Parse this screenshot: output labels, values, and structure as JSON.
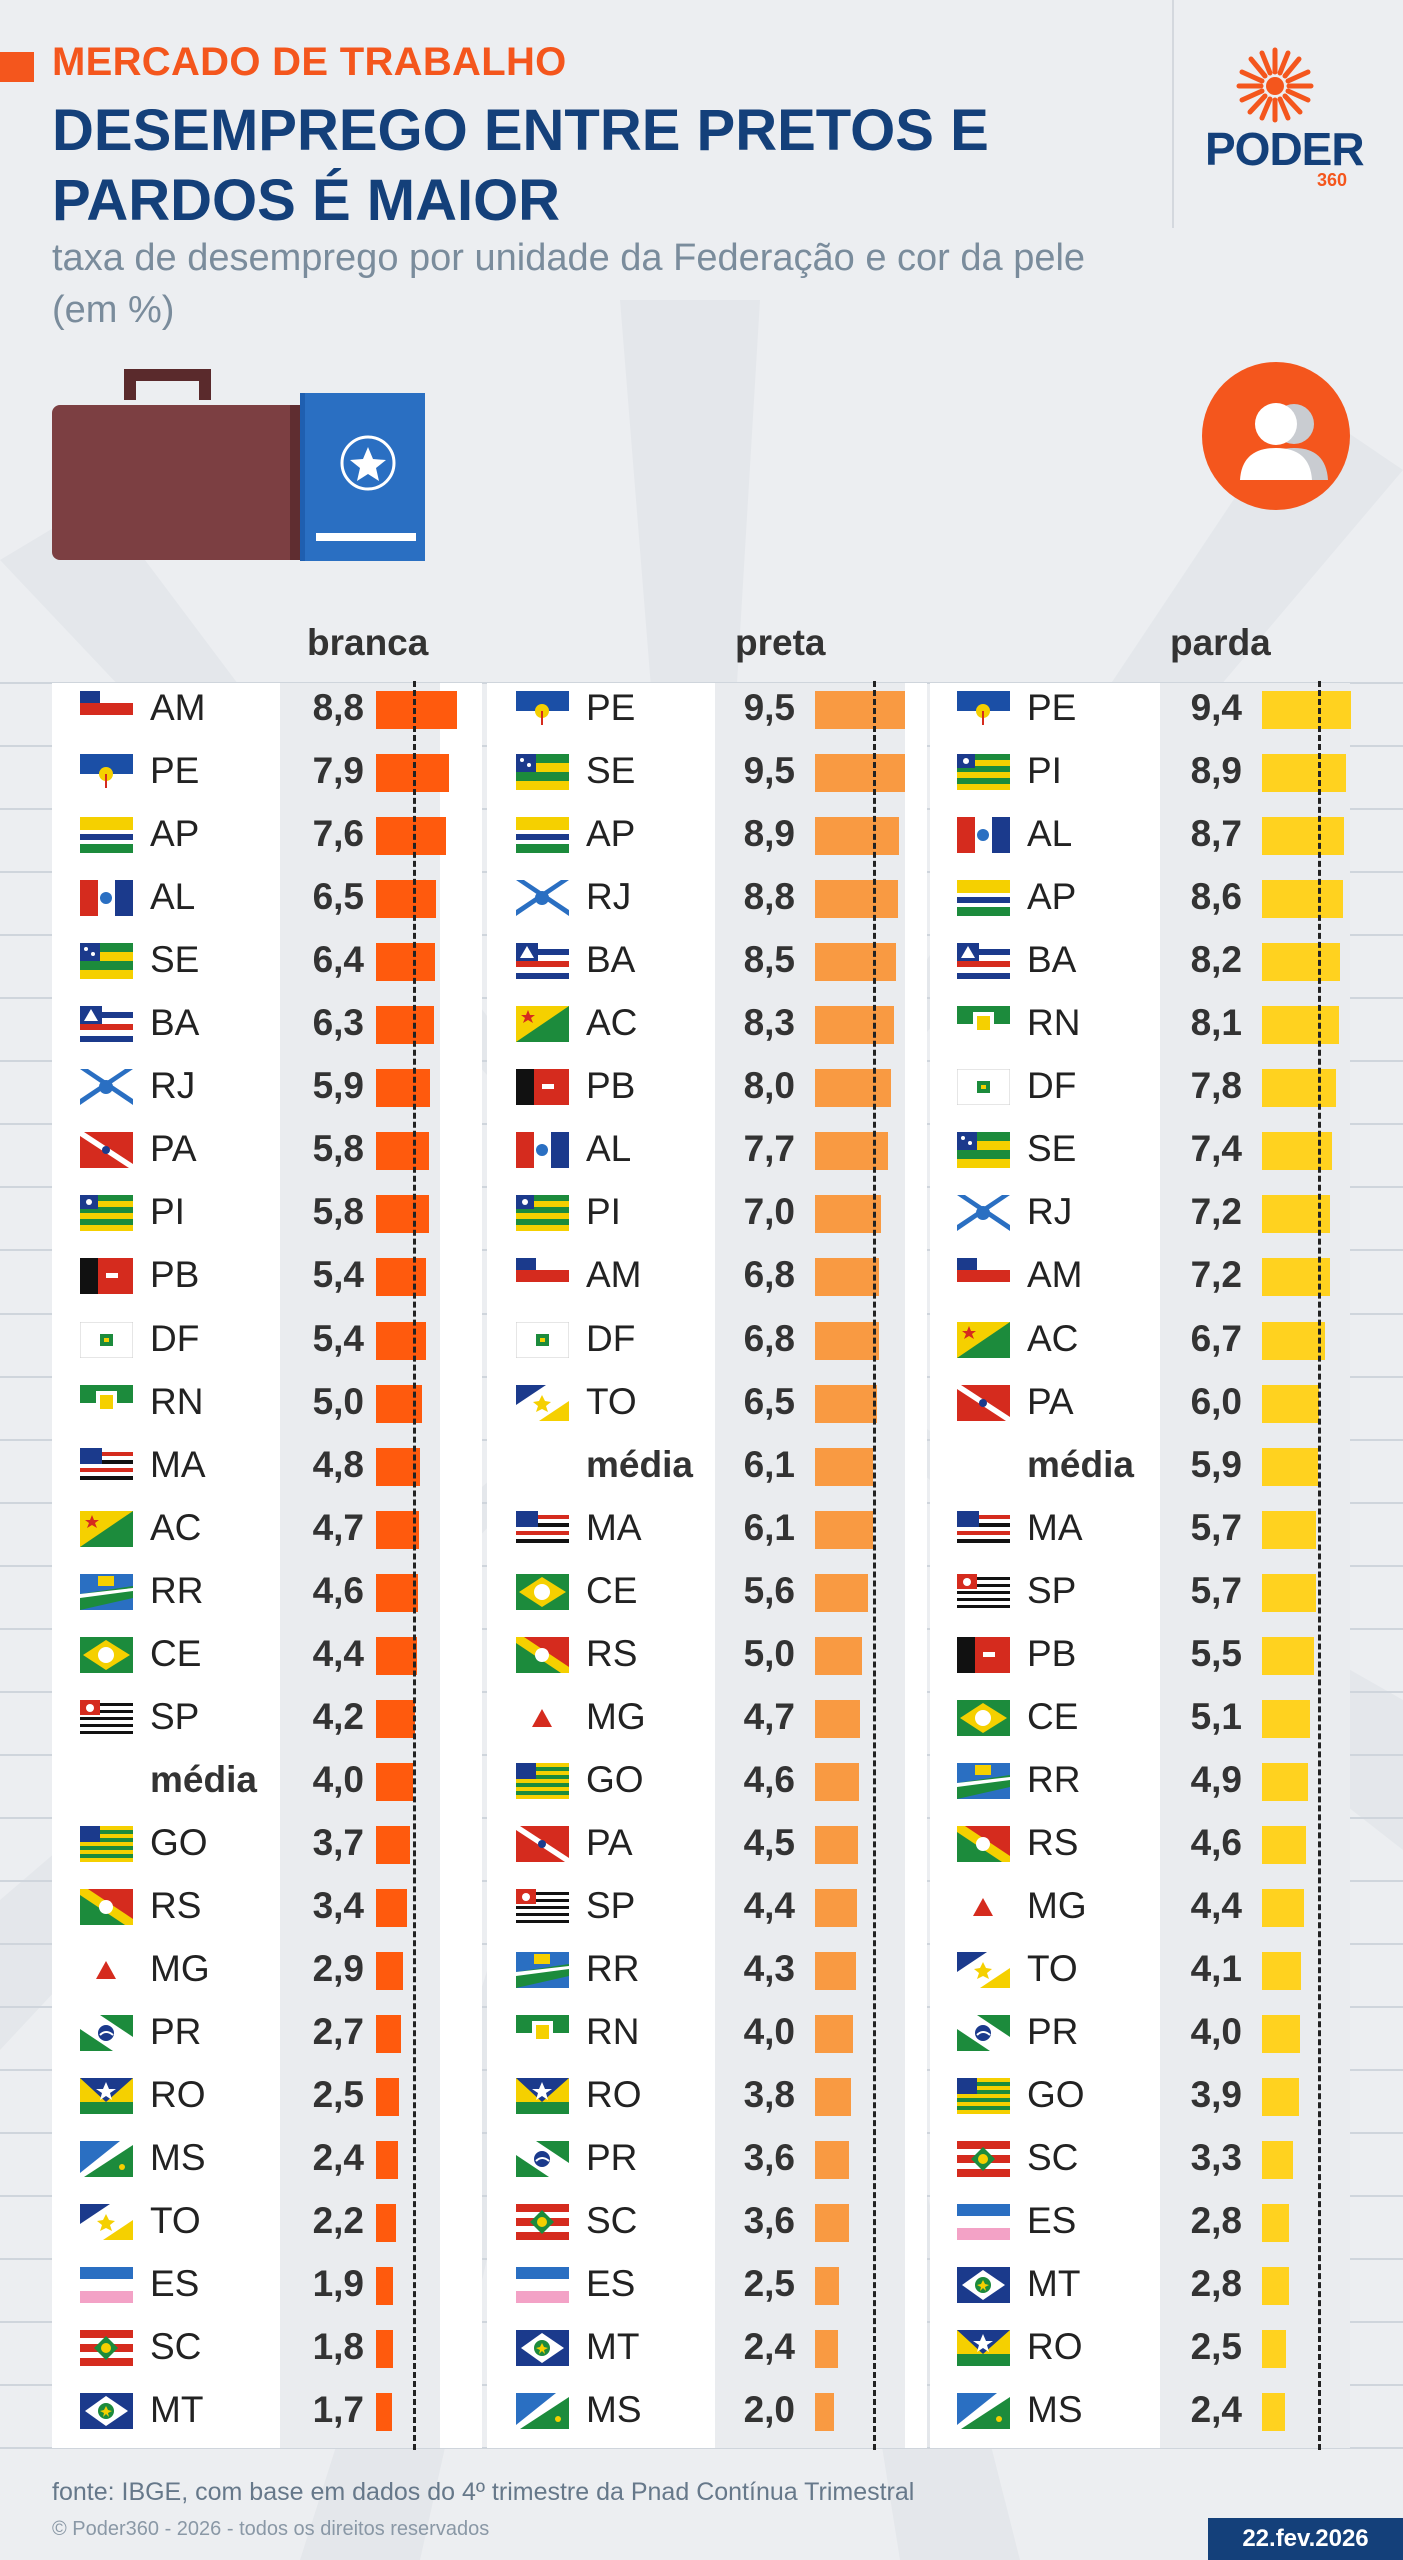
{
  "kicker": "MERCADO DE TRABALHO",
  "title": "DESEMPREGO ENTRE PRETOS E PARDOS É MAIOR",
  "subtitle": "taxa de desemprego por unidade da Federação e cor da pele (em %)",
  "brand": {
    "name": "PODER",
    "suffix": "360"
  },
  "source": "fonte: IBGE, com base em dados do 4º trimestre da Pnad Contínua Trimestral",
  "copyright": "© Poder360 - 2026 - todos os direitos reservados",
  "date": "22.fev.2026",
  "colors": {
    "accent": "#f4561d",
    "brand_blue": "#14407a",
    "branca": "#ff5a0d",
    "preta": "#f99a42",
    "parda": "#ffd21f"
  },
  "chart_data": [
    {
      "type": "bar",
      "title": "branca",
      "value_max": 8.8,
      "average": 4.0,
      "rows": [
        {
          "label": "AM",
          "value": 8.8,
          "display": "8,8"
        },
        {
          "label": "PE",
          "value": 7.9,
          "display": "7,9"
        },
        {
          "label": "AP",
          "value": 7.6,
          "display": "7,6"
        },
        {
          "label": "AL",
          "value": 6.5,
          "display": "6,5"
        },
        {
          "label": "SE",
          "value": 6.4,
          "display": "6,4"
        },
        {
          "label": "BA",
          "value": 6.3,
          "display": "6,3"
        },
        {
          "label": "RJ",
          "value": 5.9,
          "display": "5,9"
        },
        {
          "label": "PA",
          "value": 5.8,
          "display": "5,8"
        },
        {
          "label": "PI",
          "value": 5.8,
          "display": "5,8"
        },
        {
          "label": "PB",
          "value": 5.4,
          "display": "5,4"
        },
        {
          "label": "DF",
          "value": 5.4,
          "display": "5,4"
        },
        {
          "label": "RN",
          "value": 5.0,
          "display": "5,0"
        },
        {
          "label": "MA",
          "value": 4.8,
          "display": "4,8"
        },
        {
          "label": "AC",
          "value": 4.7,
          "display": "4,7"
        },
        {
          "label": "RR",
          "value": 4.6,
          "display": "4,6"
        },
        {
          "label": "CE",
          "value": 4.4,
          "display": "4,4"
        },
        {
          "label": "SP",
          "value": 4.2,
          "display": "4,2"
        },
        {
          "label": "média",
          "value": 4.0,
          "display": "4,0",
          "is_average": true
        },
        {
          "label": "GO",
          "value": 3.7,
          "display": "3,7"
        },
        {
          "label": "RS",
          "value": 3.4,
          "display": "3,4"
        },
        {
          "label": "MG",
          "value": 2.9,
          "display": "2,9"
        },
        {
          "label": "PR",
          "value": 2.7,
          "display": "2,7"
        },
        {
          "label": "RO",
          "value": 2.5,
          "display": "2,5"
        },
        {
          "label": "MS",
          "value": 2.4,
          "display": "2,4"
        },
        {
          "label": "TO",
          "value": 2.2,
          "display": "2,2"
        },
        {
          "label": "ES",
          "value": 1.9,
          "display": "1,9"
        },
        {
          "label": "SC",
          "value": 1.8,
          "display": "1,8"
        },
        {
          "label": "MT",
          "value": 1.7,
          "display": "1,7"
        }
      ]
    },
    {
      "type": "bar",
      "title": "preta",
      "value_max": 9.5,
      "average": 6.1,
      "rows": [
        {
          "label": "PE",
          "value": 9.5,
          "display": "9,5"
        },
        {
          "label": "SE",
          "value": 9.5,
          "display": "9,5"
        },
        {
          "label": "AP",
          "value": 8.9,
          "display": "8,9"
        },
        {
          "label": "RJ",
          "value": 8.8,
          "display": "8,8"
        },
        {
          "label": "BA",
          "value": 8.5,
          "display": "8,5"
        },
        {
          "label": "AC",
          "value": 8.3,
          "display": "8,3"
        },
        {
          "label": "PB",
          "value": 8.0,
          "display": "8,0"
        },
        {
          "label": "AL",
          "value": 7.7,
          "display": "7,7"
        },
        {
          "label": "PI",
          "value": 7.0,
          "display": "7,0"
        },
        {
          "label": "AM",
          "value": 6.8,
          "display": "6,8"
        },
        {
          "label": "DF",
          "value": 6.8,
          "display": "6,8"
        },
        {
          "label": "TO",
          "value": 6.5,
          "display": "6,5"
        },
        {
          "label": "média",
          "value": 6.1,
          "display": "6,1",
          "is_average": true
        },
        {
          "label": "MA",
          "value": 6.1,
          "display": "6,1"
        },
        {
          "label": "CE",
          "value": 5.6,
          "display": "5,6"
        },
        {
          "label": "RS",
          "value": 5.0,
          "display": "5,0"
        },
        {
          "label": "MG",
          "value": 4.7,
          "display": "4,7"
        },
        {
          "label": "GO",
          "value": 4.6,
          "display": "4,6"
        },
        {
          "label": "PA",
          "value": 4.5,
          "display": "4,5"
        },
        {
          "label": "SP",
          "value": 4.4,
          "display": "4,4"
        },
        {
          "label": "RR",
          "value": 4.3,
          "display": "4,3"
        },
        {
          "label": "RN",
          "value": 4.0,
          "display": "4,0"
        },
        {
          "label": "RO",
          "value": 3.8,
          "display": "3,8"
        },
        {
          "label": "PR",
          "value": 3.6,
          "display": "3,6"
        },
        {
          "label": "SC",
          "value": 3.6,
          "display": "3,6"
        },
        {
          "label": "ES",
          "value": 2.5,
          "display": "2,5"
        },
        {
          "label": "MT",
          "value": 2.4,
          "display": "2,4"
        },
        {
          "label": "MS",
          "value": 2.0,
          "display": "2,0"
        }
      ]
    },
    {
      "type": "bar",
      "title": "parda",
      "value_max": 9.4,
      "average": 5.9,
      "rows": [
        {
          "label": "PE",
          "value": 9.4,
          "display": "9,4"
        },
        {
          "label": "PI",
          "value": 8.9,
          "display": "8,9"
        },
        {
          "label": "AL",
          "value": 8.7,
          "display": "8,7"
        },
        {
          "label": "AP",
          "value": 8.6,
          "display": "8,6"
        },
        {
          "label": "BA",
          "value": 8.2,
          "display": "8,2"
        },
        {
          "label": "RN",
          "value": 8.1,
          "display": "8,1"
        },
        {
          "label": "DF",
          "value": 7.8,
          "display": "7,8"
        },
        {
          "label": "SE",
          "value": 7.4,
          "display": "7,4"
        },
        {
          "label": "RJ",
          "value": 7.2,
          "display": "7,2"
        },
        {
          "label": "AM",
          "value": 7.2,
          "display": "7,2"
        },
        {
          "label": "AC",
          "value": 6.7,
          "display": "6,7"
        },
        {
          "label": "PA",
          "value": 6.0,
          "display": "6,0"
        },
        {
          "label": "média",
          "value": 5.9,
          "display": "5,9",
          "is_average": true
        },
        {
          "label": "MA",
          "value": 5.7,
          "display": "5,7"
        },
        {
          "label": "SP",
          "value": 5.7,
          "display": "5,7"
        },
        {
          "label": "PB",
          "value": 5.5,
          "display": "5,5"
        },
        {
          "label": "CE",
          "value": 5.1,
          "display": "5,1"
        },
        {
          "label": "RR",
          "value": 4.9,
          "display": "4,9"
        },
        {
          "label": "RS",
          "value": 4.6,
          "display": "4,6"
        },
        {
          "label": "MG",
          "value": 4.4,
          "display": "4,4"
        },
        {
          "label": "TO",
          "value": 4.1,
          "display": "4,1"
        },
        {
          "label": "PR",
          "value": 4.0,
          "display": "4,0"
        },
        {
          "label": "GO",
          "value": 3.9,
          "display": "3,9"
        },
        {
          "label": "SC",
          "value": 3.3,
          "display": "3,3"
        },
        {
          "label": "ES",
          "value": 2.8,
          "display": "2,8"
        },
        {
          "label": "MT",
          "value": 2.8,
          "display": "2,8"
        },
        {
          "label": "RO",
          "value": 2.5,
          "display": "2,5"
        },
        {
          "label": "MS",
          "value": 2.4,
          "display": "2,4"
        }
      ]
    }
  ]
}
